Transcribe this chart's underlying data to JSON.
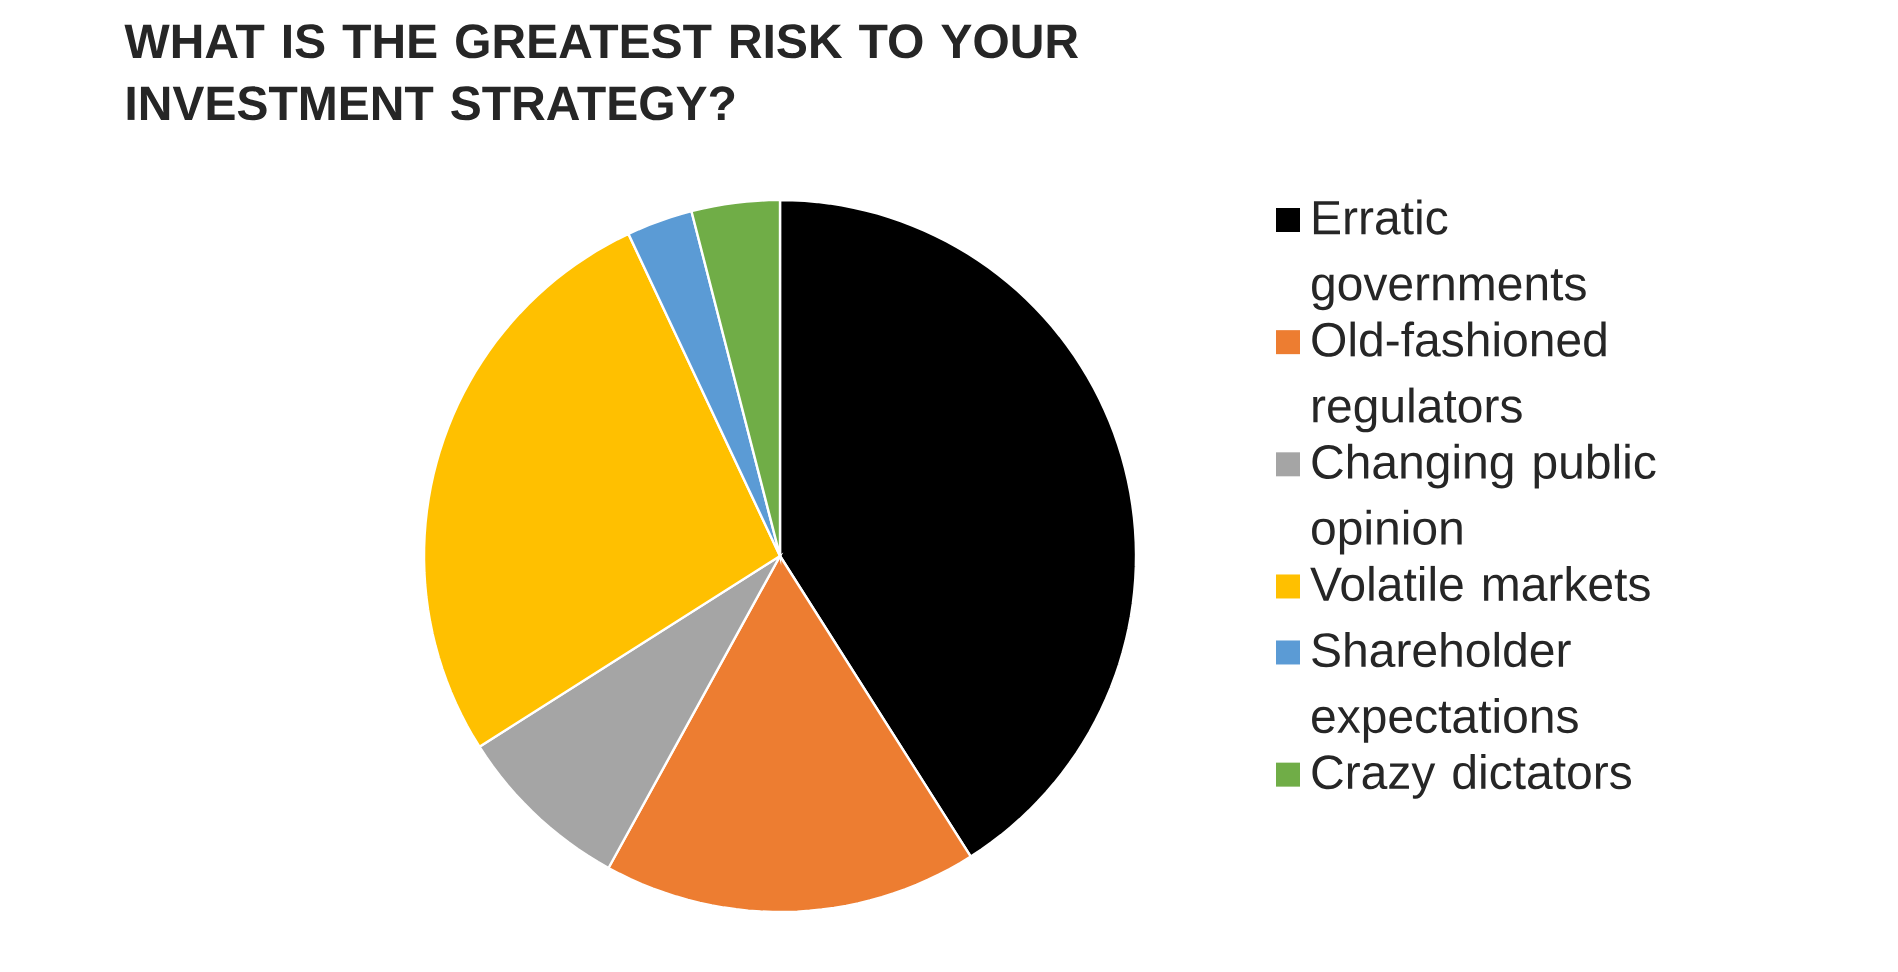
{
  "chart_data": {
    "type": "pie",
    "title": "WHAT IS THE GREATEST RISK TO YOUR INVESTMENT STRATEGY?",
    "categories": [
      "Erratic governments",
      "Old-fashioned regulators",
      "Changing public opinion",
      "Volatile markets",
      "Shareholder expectations",
      "Crazy dictators"
    ],
    "values": [
      41,
      17,
      8,
      27,
      3,
      4
    ],
    "colors": [
      "#000000",
      "#ed7d31",
      "#a5a5a5",
      "#ffc000",
      "#5b9bd5",
      "#70ad47"
    ],
    "legend": "right"
  }
}
